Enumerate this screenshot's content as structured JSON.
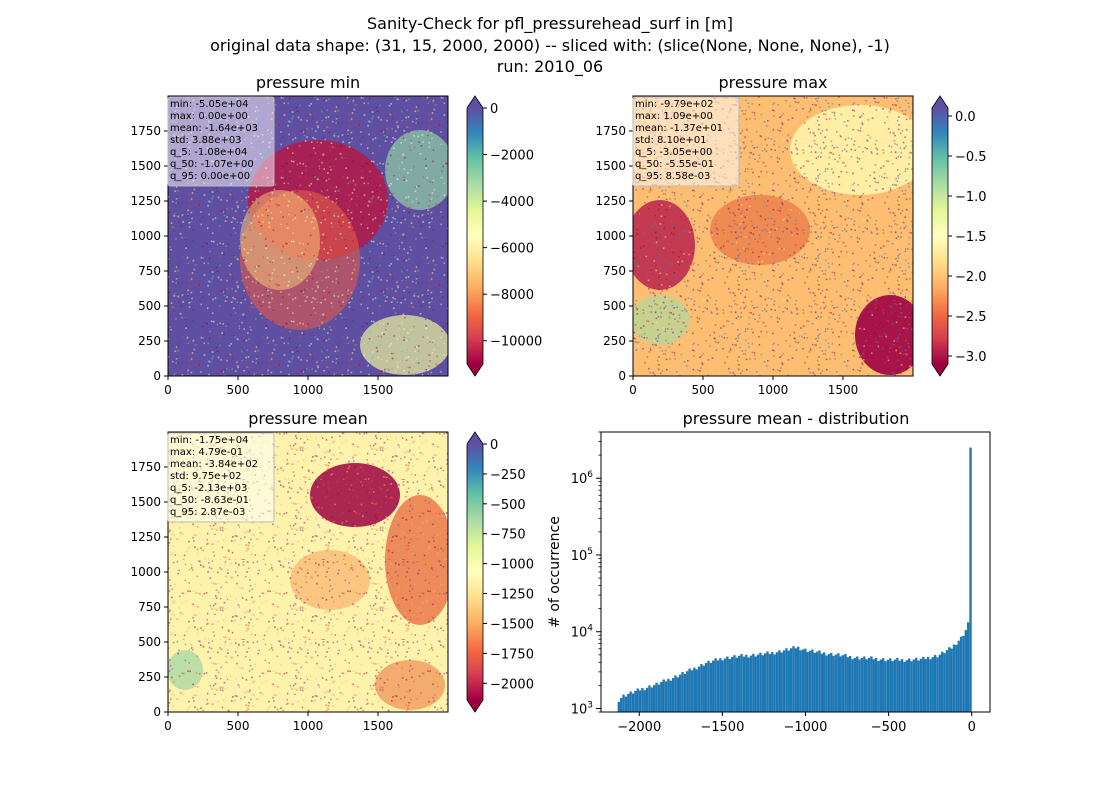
{
  "suptitle": [
    "Sanity-Check for pfl_pressurehead_surf in [m]",
    "original data shape: (31, 15, 2000, 2000) -- sliced with: (slice(None, None, None), -1)",
    "run: 2010_06"
  ],
  "colors": {
    "spectral": [
      "#9e0142",
      "#d53e4f",
      "#f46d43",
      "#fdae61",
      "#fee08b",
      "#ffffbf",
      "#e6f598",
      "#abdda4",
      "#66c2a5",
      "#3288bd",
      "#5e4fa2"
    ],
    "hist_bar": "#1f77b4",
    "stats_box_bg": "#ffffff",
    "stats_box_border": "#bbbbbb"
  },
  "chart_data": [
    {
      "type": "heatmap",
      "title": "pressure min",
      "x_ticks": [
        "0",
        "500",
        "1000",
        "1500"
      ],
      "y_ticks": [
        "0",
        "250",
        "500",
        "750",
        "1000",
        "1250",
        "1500",
        "1750"
      ],
      "xlim": [
        0,
        2000
      ],
      "ylim": [
        0,
        2000
      ],
      "colorbar": {
        "vmin": -11000,
        "vmax": 0,
        "ticks": [
          "0",
          "−2000",
          "−4000",
          "−6000",
          "−8000",
          "−10000"
        ],
        "tick_values": [
          0,
          -2000,
          -4000,
          -6000,
          -8000,
          -10000
        ],
        "extend": "both"
      },
      "stats": [
        "min: -5.05e+04",
        "max: 0.00e+00",
        "mean: -1.64e+03",
        "std: 3.88e+03",
        "q_5: -1.08e+04",
        "q_50: -1.07e+00",
        "q_95: 0.00e+00"
      ]
    },
    {
      "type": "heatmap",
      "title": "pressure max",
      "x_ticks": [
        "0",
        "500",
        "1000",
        "1500"
      ],
      "y_ticks": [
        "0",
        "250",
        "500",
        "750",
        "1000",
        "1250",
        "1500",
        "1750"
      ],
      "xlim": [
        0,
        2000
      ],
      "ylim": [
        0,
        2000
      ],
      "colorbar": {
        "vmin": -3.1,
        "vmax": 0.1,
        "ticks": [
          "0.0",
          "−0.5",
          "−1.0",
          "−1.5",
          "−2.0",
          "−2.5",
          "−3.0"
        ],
        "tick_values": [
          0,
          -0.5,
          -1.0,
          -1.5,
          -2.0,
          -2.5,
          -3.0
        ],
        "extend": "both"
      },
      "stats": [
        "min: -9.79e+02",
        "max: 1.09e+00",
        "mean: -1.37e+01",
        "std: 8.10e+01",
        "q_5: -3.05e+00",
        "q_50: -5.55e-01",
        "q_95: 8.58e-03"
      ]
    },
    {
      "type": "heatmap",
      "title": "pressure mean",
      "x_ticks": [
        "0",
        "500",
        "1000",
        "1500"
      ],
      "y_ticks": [
        "0",
        "250",
        "500",
        "750",
        "1000",
        "1250",
        "1500",
        "1750"
      ],
      "xlim": [
        0,
        2000
      ],
      "ylim": [
        0,
        2000
      ],
      "colorbar": {
        "vmin": -2140,
        "vmax": 0,
        "ticks": [
          "0",
          "−250",
          "−500",
          "−750",
          "−1000",
          "−1250",
          "−1500",
          "−1750",
          "−2000"
        ],
        "tick_values": [
          0,
          -250,
          -500,
          -750,
          -1000,
          -1250,
          -1500,
          -1750,
          -2000
        ],
        "extend": "both"
      },
      "stats": [
        "min: -1.75e+04",
        "max: 4.79e-01",
        "mean: -3.84e+02",
        "std: 9.75e+02",
        "q_5: -2.13e+03",
        "q_50: -8.63e-01",
        "q_95: 2.87e-03"
      ]
    },
    {
      "type": "bar",
      "title": "pressure mean - distribution",
      "ylabel": "# of occurrence",
      "xlabel": "",
      "y_scale": "log",
      "xlim": [
        -2230,
        110
      ],
      "ylim": [
        900,
        4000000
      ],
      "x_ticks": [
        "−2000",
        "−1500",
        "−1000",
        "−500",
        "0"
      ],
      "x_tick_values": [
        -2000,
        -1500,
        -1000,
        -500,
        0
      ],
      "y_ticks": [
        {
          "base": "10",
          "exp": "3",
          "value": 1000
        },
        {
          "base": "10",
          "exp": "4",
          "value": 10000
        },
        {
          "base": "10",
          "exp": "5",
          "value": 100000
        },
        {
          "base": "10",
          "exp": "6",
          "value": 1000000
        }
      ],
      "bins": {
        "start": -2130,
        "end": 0,
        "count": 150
      },
      "profile_points": [
        [
          -2130,
          1250
        ],
        [
          -2100,
          1450
        ],
        [
          -2000,
          1750
        ],
        [
          -1900,
          2050
        ],
        [
          -1800,
          2500
        ],
        [
          -1700,
          3100
        ],
        [
          -1600,
          3900
        ],
        [
          -1500,
          4500
        ],
        [
          -1400,
          4800
        ],
        [
          -1300,
          5000
        ],
        [
          -1200,
          5300
        ],
        [
          -1100,
          5900
        ],
        [
          -1050,
          6300
        ],
        [
          -1000,
          5800
        ],
        [
          -900,
          5300
        ],
        [
          -800,
          5000
        ],
        [
          -700,
          4600
        ],
        [
          -600,
          4500
        ],
        [
          -500,
          4300
        ],
        [
          -400,
          4300
        ],
        [
          -300,
          4400
        ],
        [
          -200,
          4900
        ],
        [
          -120,
          6200
        ],
        [
          -60,
          8500
        ],
        [
          -25,
          11500
        ],
        [
          -10,
          17000
        ],
        [
          0,
          2600000
        ]
      ]
    }
  ]
}
